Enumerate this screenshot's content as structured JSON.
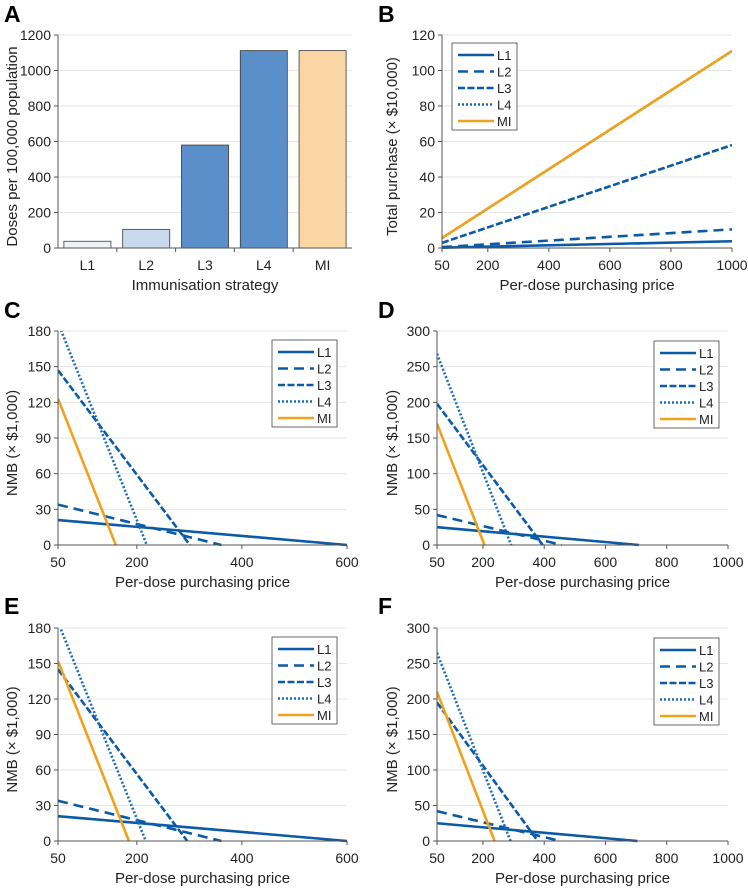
{
  "colors": {
    "blue": "#0b5aa8",
    "blue_light": "#1a6cbd",
    "orange": "#f0a21c",
    "grid": "#e6e6e6",
    "axis": "#555555"
  },
  "chart_data": [
    {
      "panel": "A",
      "type": "bar",
      "categories": [
        "L1",
        "L2",
        "L3",
        "L4",
        "MI"
      ],
      "values": [
        38,
        105,
        580,
        1112,
        1112
      ],
      "bar_colors": [
        "#eef2f8",
        "#c9d9ee",
        "#5b8fc9",
        "#5b8fc9",
        "#fad6a5"
      ],
      "xlabel": "Immunisation strategy",
      "ylabel": "Doses per 100,000 population",
      "ylim": [
        0,
        1200
      ],
      "yticks": [
        0,
        200,
        400,
        600,
        800,
        1000,
        1200
      ],
      "grid": true
    },
    {
      "panel": "B",
      "type": "line",
      "xlabel": "Per-dose purchasing price",
      "ylabel": "Total purchase (× $10,000)",
      "xlim": [
        50,
        1000
      ],
      "xticks": [
        50,
        200,
        400,
        600,
        800,
        1000
      ],
      "ylim": [
        0,
        120
      ],
      "yticks": [
        0,
        20,
        40,
        60,
        80,
        100,
        120
      ],
      "grid": true,
      "legend": "top-left",
      "series": [
        {
          "name": "L1",
          "style": "solid",
          "points": [
            [
              50,
              0.2
            ],
            [
              1000,
              3.8
            ]
          ]
        },
        {
          "name": "L2",
          "style": "dashed",
          "points": [
            [
              50,
              0.5
            ],
            [
              1000,
              10.5
            ]
          ]
        },
        {
          "name": "L3",
          "style": "dash-dot",
          "points": [
            [
              50,
              2.9
            ],
            [
              1000,
              58
            ]
          ]
        },
        {
          "name": "L4",
          "style": "dotted",
          "points": [
            [
              50,
              5.6
            ],
            [
              1000,
              111
            ]
          ]
        },
        {
          "name": "MI",
          "style": "solid-orange",
          "points": [
            [
              50,
              5.6
            ],
            [
              1000,
              111
            ]
          ]
        }
      ]
    },
    {
      "panel": "C",
      "type": "line",
      "xlabel": "Per-dose purchasing price",
      "ylabel": "NMB (× $1,000)",
      "xlim": [
        50,
        600
      ],
      "xticks": [
        50,
        200,
        400,
        600
      ],
      "ylim": [
        0,
        180
      ],
      "yticks": [
        0,
        30,
        60,
        90,
        120,
        150,
        180
      ],
      "grid": true,
      "legend": "top-right",
      "series": [
        {
          "name": "L1",
          "style": "solid",
          "points": [
            [
              50,
              21
            ],
            [
              600,
              0
            ]
          ]
        },
        {
          "name": "L2",
          "style": "dashed",
          "points": [
            [
              50,
              34
            ],
            [
              361,
              0
            ]
          ]
        },
        {
          "name": "L3",
          "style": "dash-dot",
          "points": [
            [
              50,
              147
            ],
            [
              301,
              0
            ]
          ]
        },
        {
          "name": "L4",
          "style": "dotted",
          "points": [
            [
              50,
              187
            ],
            [
              219,
              0
            ]
          ]
        },
        {
          "name": "MI",
          "style": "solid-orange",
          "points": [
            [
              50,
              123
            ],
            [
              160,
              0
            ]
          ]
        }
      ]
    },
    {
      "panel": "D",
      "type": "line",
      "xlabel": "Per-dose purchasing price",
      "ylabel": "NMB (× $1,000)",
      "xlim": [
        50,
        1000
      ],
      "xticks": [
        50,
        200,
        400,
        600,
        800,
        1000
      ],
      "ylim": [
        0,
        300
      ],
      "yticks": [
        0,
        50,
        100,
        150,
        200,
        250,
        300
      ],
      "grid": true,
      "legend": "top-right",
      "series": [
        {
          "name": "L1",
          "style": "solid",
          "points": [
            [
              50,
              25
            ],
            [
              709,
              0
            ]
          ]
        },
        {
          "name": "L2",
          "style": "dashed",
          "points": [
            [
              50,
              42
            ],
            [
              458,
              0
            ]
          ]
        },
        {
          "name": "L3",
          "style": "dash-dot",
          "points": [
            [
              50,
              198
            ],
            [
              395,
              0
            ]
          ]
        },
        {
          "name": "L4",
          "style": "dotted",
          "points": [
            [
              50,
              268
            ],
            [
              292,
              0
            ]
          ]
        },
        {
          "name": "MI",
          "style": "solid-orange",
          "points": [
            [
              50,
              170
            ],
            [
              205,
              0
            ]
          ]
        }
      ]
    },
    {
      "panel": "E",
      "type": "line",
      "xlabel": "Per-dose purchasing price",
      "ylabel": "NMB (× $1,000)",
      "xlim": [
        50,
        600
      ],
      "xticks": [
        50,
        200,
        400,
        600
      ],
      "ylim": [
        0,
        180
      ],
      "yticks": [
        0,
        30,
        60,
        90,
        120,
        150,
        180
      ],
      "grid": true,
      "legend": "top-right",
      "series": [
        {
          "name": "L1",
          "style": "solid",
          "points": [
            [
              50,
              21
            ],
            [
              600,
              0
            ]
          ]
        },
        {
          "name": "L2",
          "style": "dashed",
          "points": [
            [
              50,
              34
            ],
            [
              361,
              0
            ]
          ]
        },
        {
          "name": "L3",
          "style": "dash-dot",
          "points": [
            [
              50,
              145
            ],
            [
              296,
              0
            ]
          ]
        },
        {
          "name": "L4",
          "style": "dotted",
          "points": [
            [
              50,
              185
            ],
            [
              217,
              0
            ]
          ]
        },
        {
          "name": "MI",
          "style": "solid-orange",
          "points": [
            [
              50,
              152
            ],
            [
              185,
              0
            ]
          ]
        }
      ]
    },
    {
      "panel": "F",
      "type": "line",
      "xlabel": "Per-dose purchasing price",
      "ylabel": "NMB (× $1,000)",
      "xlim": [
        50,
        1000
      ],
      "xticks": [
        50,
        200,
        400,
        600,
        800,
        1000
      ],
      "ylim": [
        0,
        300
      ],
      "yticks": [
        0,
        50,
        100,
        150,
        200,
        250,
        300
      ],
      "grid": true,
      "legend": "top-right",
      "series": [
        {
          "name": "L1",
          "style": "solid",
          "points": [
            [
              50,
              25
            ],
            [
              704,
              0
            ]
          ]
        },
        {
          "name": "L2",
          "style": "dashed",
          "points": [
            [
              50,
              42
            ],
            [
              453,
              0
            ]
          ]
        },
        {
          "name": "L3",
          "style": "dash-dot",
          "points": [
            [
              50,
              195
            ],
            [
              379,
              0
            ]
          ]
        },
        {
          "name": "L4",
          "style": "dotted",
          "points": [
            [
              50,
              265
            ],
            [
              290,
              0
            ]
          ]
        },
        {
          "name": "MI",
          "style": "solid-orange",
          "points": [
            [
              50,
              210
            ],
            [
              238,
              0
            ]
          ]
        }
      ]
    }
  ]
}
